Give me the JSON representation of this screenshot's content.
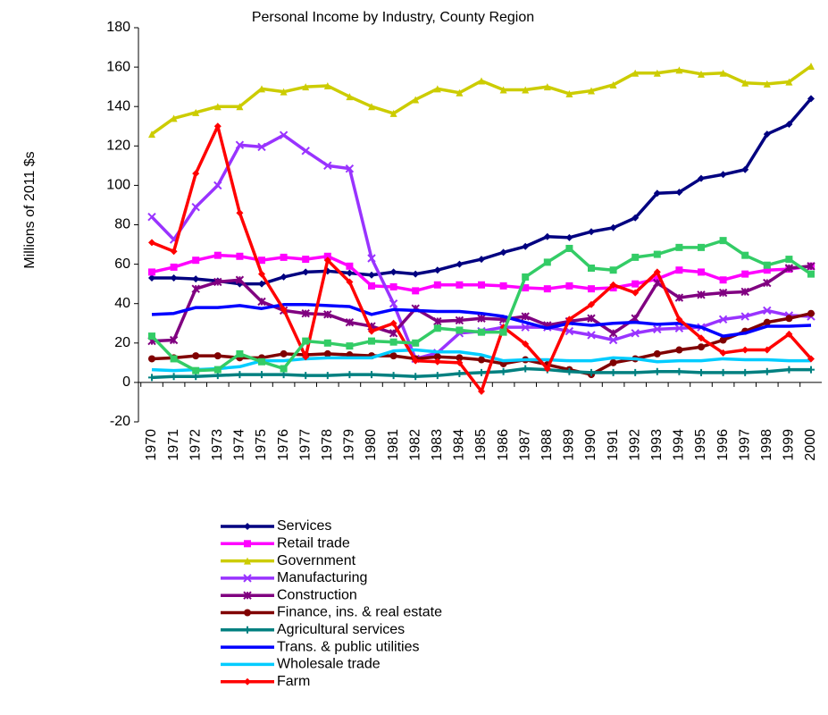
{
  "chart_data": {
    "type": "line",
    "title": "Personal Income by Industry, County Region",
    "y_label": "Millions of 2011 $s",
    "categories": [
      "1970",
      "1971",
      "1972",
      "1973",
      "1974",
      "1975",
      "1976",
      "1977",
      "1978",
      "1979",
      "1980",
      "1981",
      "1982",
      "1983",
      "1984",
      "1985",
      "1986",
      "1987",
      "1988",
      "1989",
      "1990",
      "1991",
      "1992",
      "1993",
      "1994",
      "1995",
      "1996",
      "1997",
      "1998",
      "1999",
      "2000"
    ],
    "ylim": [
      -20,
      180
    ],
    "yticks": [
      -20,
      0,
      20,
      40,
      60,
      80,
      100,
      120,
      140,
      160,
      180
    ],
    "series": [
      {
        "name": "Services",
        "color": "#000080",
        "marker": "diamond",
        "values": [
          53,
          53,
          52.5,
          51.5,
          50,
          50,
          53.5,
          56,
          56.5,
          55.5,
          54.5,
          56,
          55,
          57,
          60,
          62.5,
          66,
          69,
          74,
          73.5,
          76.5,
          78.5,
          83.5,
          96,
          96.5,
          103.5,
          105.5,
          108,
          126,
          131,
          144
        ]
      },
      {
        "name": "Retail trade",
        "color": "#ff00ff",
        "marker": "square",
        "values": [
          56,
          58.5,
          62,
          64.5,
          64,
          62,
          63.5,
          62.5,
          64,
          59,
          49,
          48.5,
          46.5,
          49.5,
          49.5,
          49.5,
          49,
          48,
          47.5,
          49,
          47.5,
          48,
          50,
          52.5,
          57,
          56,
          52,
          55,
          57,
          57.5,
          59
        ]
      },
      {
        "name": "Government",
        "color": "#cccc00",
        "marker": "triangle",
        "values": [
          126,
          134,
          137,
          140,
          140,
          149,
          147.5,
          150,
          150.5,
          145,
          140,
          136.5,
          143.5,
          149,
          147,
          153,
          148.5,
          148.5,
          150,
          146.5,
          148,
          151,
          157,
          157,
          158.5,
          156.5,
          157,
          152,
          151.5,
          152.5,
          160.5
        ]
      },
      {
        "name": "Manufacturing",
        "color": "#9933ff",
        "marker": "x",
        "values": [
          84,
          72.5,
          89,
          100,
          120.5,
          119.5,
          125.5,
          117.5,
          110,
          108.5,
          63,
          40,
          12,
          15,
          25,
          26,
          28,
          28,
          28,
          26,
          24,
          21.5,
          25,
          27,
          27.5,
          28,
          32,
          33.5,
          36.5,
          34,
          33.5
        ]
      },
      {
        "name": "Construction",
        "color": "#800080",
        "marker": "star",
        "values": [
          21,
          21.5,
          47.5,
          51,
          52,
          41,
          36.5,
          35,
          34.5,
          30.5,
          28.5,
          25,
          37.5,
          31,
          31.5,
          32.5,
          32,
          33.5,
          29,
          31,
          32.5,
          25,
          32.5,
          50.5,
          43,
          44.5,
          45.5,
          46,
          50.5,
          58,
          59
        ]
      },
      {
        "name": "Finance, ins. & real estate",
        "color": "#800000",
        "marker": "circle",
        "values": [
          12,
          12.5,
          13.5,
          13.5,
          12.5,
          12.5,
          14.5,
          14,
          14.5,
          14,
          13.5,
          13.5,
          12,
          13,
          12.5,
          11.5,
          9.5,
          11.5,
          9,
          6.5,
          4,
          10,
          12,
          14.5,
          16.5,
          18,
          21.5,
          26,
          30.5,
          32.5,
          35
        ]
      },
      {
        "name": "Agricultural services",
        "color": "#008080",
        "marker": "plus",
        "values": [
          2.5,
          3,
          3,
          3.5,
          4,
          4,
          4,
          3.5,
          3.5,
          4,
          4,
          3.5,
          3,
          3.5,
          4.5,
          5,
          5.5,
          7,
          6.5,
          5.5,
          5,
          5,
          5,
          5.5,
          5.5,
          5,
          5,
          5,
          5.5,
          6.5,
          6.5
        ]
      },
      {
        "name": "Trans. & public utilities",
        "color": "#0000ff",
        "marker": "none",
        "values": [
          34.5,
          35,
          38,
          38,
          39,
          37.5,
          39.5,
          39.5,
          39,
          38.5,
          34.5,
          37,
          36.5,
          36,
          36,
          35,
          33.5,
          30.5,
          27.5,
          30,
          29,
          30,
          30.5,
          29.5,
          30,
          28,
          23.5,
          25,
          28.5,
          28.5,
          29
        ]
      },
      {
        "name": "Wholesale trade",
        "color": "#00ccff",
        "marker": "none",
        "values": [
          6.5,
          6,
          6.5,
          7,
          8,
          11,
          11,
          12,
          12.5,
          12.5,
          12.5,
          16,
          16.5,
          15.5,
          15.5,
          14,
          11,
          11.5,
          11.5,
          11,
          11,
          12.5,
          12,
          10.5,
          11,
          11,
          12,
          11.5,
          11.5,
          11,
          11
        ]
      },
      {
        "name": "Farm",
        "color": "#ff0000",
        "marker": "diamond",
        "values": [
          71,
          66.5,
          106,
          130,
          86,
          55,
          37,
          13,
          62,
          51,
          26,
          30,
          11,
          10.5,
          10,
          -4.5,
          28,
          19.5,
          7,
          32,
          39.5,
          49.5,
          45.5,
          56,
          32,
          22.5,
          15,
          16.5,
          16.5,
          24.5,
          12
        ]
      },
      {
        "color": "#33cc66",
        "marker": "square",
        "values": [
          23.5,
          12,
          6,
          6.5,
          14.5,
          10.5,
          7,
          21,
          20,
          18.5,
          21,
          20.5,
          20,
          27.5,
          26.5,
          25.5,
          25.5,
          53.5,
          61,
          68,
          58,
          57,
          63.5,
          65,
          68.5,
          68.5,
          72,
          64.5,
          59.5,
          62.5,
          55
        ]
      }
    ]
  }
}
